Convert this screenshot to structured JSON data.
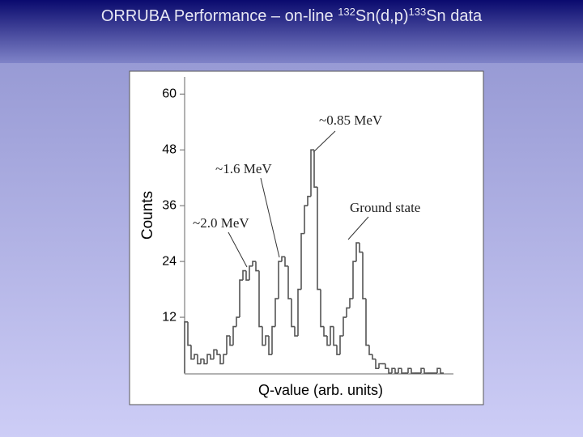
{
  "slide": {
    "title_parts": [
      "ORRUBA Performance – on-line ",
      "132",
      "Sn(d,p)",
      "133",
      "Sn data"
    ]
  },
  "chart_data": {
    "type": "histogram",
    "y_label": "Counts",
    "x_label": "Q-value (arb. units)",
    "values": [
      11,
      6,
      3,
      4,
      2,
      3,
      2,
      4,
      3,
      5,
      4,
      2,
      4,
      8,
      6,
      10,
      12,
      20,
      22,
      20,
      23,
      24,
      22,
      10,
      6,
      8,
      4,
      10,
      16,
      24,
      25,
      23,
      16,
      10,
      8,
      18,
      30,
      36,
      38,
      48,
      40,
      18,
      10,
      8,
      6,
      10,
      6,
      4,
      8,
      12,
      14,
      16,
      24,
      28,
      26,
      16,
      6,
      4,
      3,
      1,
      2,
      2,
      1,
      0,
      1,
      0,
      1,
      0,
      0,
      1,
      0,
      0,
      0,
      1,
      0,
      0,
      0,
      0,
      1,
      0
    ],
    "color": "#555555",
    "ylim": [
      0,
      63
    ],
    "yticks": [
      12,
      24,
      36,
      48,
      60
    ],
    "annotations": [
      "~0.85 MeV",
      "~1.6 MeV",
      "~2.0 MeV",
      "Ground state"
    ]
  }
}
